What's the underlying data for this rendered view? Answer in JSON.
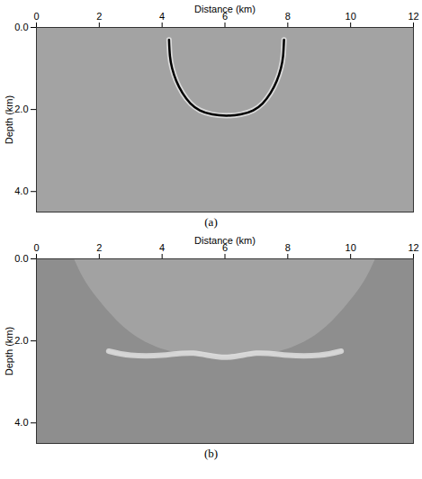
{
  "chart_data": [
    {
      "type": "line",
      "title": "(a)",
      "x_label": "Distance (km)",
      "y_label": "Depth (km)",
      "xlim": [
        0,
        12
      ],
      "xticks": [
        0,
        2,
        4,
        6,
        8,
        10,
        12
      ],
      "ylim": [
        0,
        4.5
      ],
      "yticks": [
        0,
        2,
        4
      ],
      "series": [
        {
          "type": "line",
          "color": "#000000",
          "x": [
            4.22,
            4.25,
            4.32,
            4.45,
            4.65,
            4.9,
            5.2,
            5.6,
            6.05,
            6.5,
            6.9,
            7.2,
            7.45,
            7.65,
            7.78,
            7.85,
            7.88
          ],
          "values": [
            0.3,
            0.7,
            1.0,
            1.3,
            1.6,
            1.85,
            2.02,
            2.12,
            2.15,
            2.12,
            2.02,
            1.85,
            1.6,
            1.3,
            1.0,
            0.7,
            0.3
          ]
        }
      ]
    },
    {
      "type": "area",
      "title": "(b)",
      "x_label": "Distance (km)",
      "y_label": "Depth (km)",
      "xlim": [
        0,
        12
      ],
      "xticks": [
        0,
        2,
        4,
        6,
        8,
        10,
        12
      ],
      "ylim": [
        0,
        4.5
      ],
      "yticks": [
        0,
        2,
        4
      ],
      "series": [
        {
          "type": "area",
          "color": "#a8a8a8",
          "x": [
            1.2,
            1.6,
            2.2,
            3,
            4,
            5,
            6,
            7,
            8,
            9,
            9.8,
            10.4,
            10.8
          ],
          "values": [
            0,
            0.6,
            1.2,
            1.8,
            2.2,
            2.35,
            2.4,
            2.35,
            2.2,
            1.8,
            1.2,
            0.6,
            0
          ]
        },
        {
          "type": "line",
          "color": "#d6d6d6",
          "x": [
            2.3,
            3,
            4,
            5,
            6,
            7,
            8,
            9,
            9.7
          ],
          "values": [
            2.25,
            2.35,
            2.35,
            2.3,
            2.4,
            2.3,
            2.35,
            2.35,
            2.25
          ]
        }
      ]
    }
  ]
}
